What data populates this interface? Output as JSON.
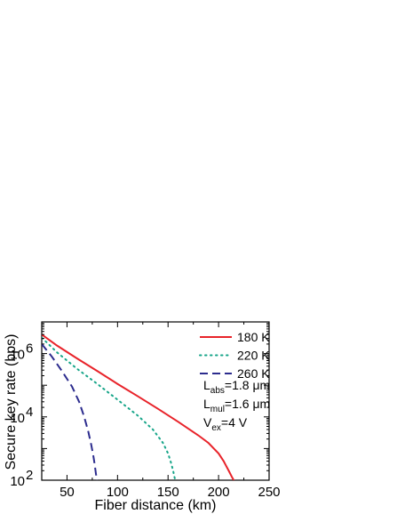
{
  "chart_data": {
    "type": "line",
    "xlabel": "Fiber distance (km)",
    "ylabel": "Secure key rate (bps)",
    "xlim": [
      25,
      250
    ],
    "ylim_log10": [
      2,
      7
    ],
    "y_scale": "log",
    "grid": false,
    "legend_position": "top-right",
    "x_ticks": [
      50,
      100,
      150,
      200,
      250
    ],
    "y_ticks": [
      {
        "value": 100,
        "base": "10",
        "exp": "2"
      },
      {
        "value": 10000,
        "base": "10",
        "exp": "4"
      },
      {
        "value": 1000000,
        "base": "10",
        "exp": "6"
      }
    ],
    "series": [
      {
        "name": "180 K",
        "color": "#e8232a",
        "dash": "solid",
        "x": [
          25,
          40,
          60,
          80,
          100,
          120,
          140,
          160,
          180,
          190,
          200,
          205,
          210,
          213,
          215,
          216.5
        ],
        "y": [
          4000000,
          1800000,
          700000,
          280000,
          110000,
          45000,
          18000,
          7000,
          2600,
          1500,
          700,
          400,
          200,
          130,
          100,
          80
        ]
      },
      {
        "name": "220 K",
        "color": "#17a589",
        "dash": "dotted",
        "x": [
          25,
          40,
          60,
          80,
          100,
          120,
          135,
          145,
          150,
          153,
          155,
          156.5,
          157.5,
          158
        ],
        "y": [
          3200000,
          1100000,
          330000,
          110000,
          35000,
          11000,
          4000,
          1500,
          700,
          350,
          200,
          120,
          90,
          80
        ]
      },
      {
        "name": "260 K",
        "color": "#2c2c8e",
        "dash": "dashed",
        "x": [
          25,
          35,
          45,
          55,
          62,
          67,
          71,
          74,
          76,
          77.5,
          78.5,
          79.2,
          79.6,
          80
        ],
        "y": [
          2000000,
          800000,
          280000,
          90000,
          30000,
          10000,
          3500,
          1300,
          600,
          300,
          170,
          120,
          95,
          80
        ]
      }
    ],
    "annotations": [
      {
        "base": "L",
        "sub": "abs",
        "text": "=1.8 μm"
      },
      {
        "base": "L",
        "sub": "mul",
        "text": "=1.6 μm"
      },
      {
        "base": "V",
        "sub": "ex",
        "text": "=4 V"
      }
    ]
  }
}
